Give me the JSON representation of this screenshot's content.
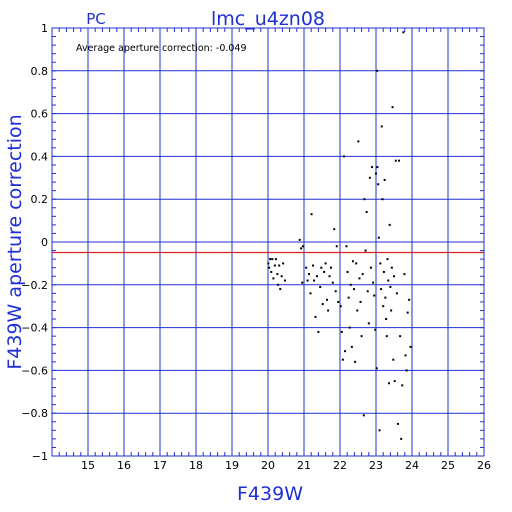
{
  "chart_data": {
    "type": "scatter",
    "panel_label": "PC",
    "title": "lmc_u4zn08",
    "xlabel": "F439W",
    "ylabel": "F439W aperture correction",
    "annotation": "Average aperture correction: -0.049",
    "average_aperture_correction": -0.049,
    "xlim": [
      14,
      26
    ],
    "ylim": [
      -1,
      1
    ],
    "x_ticks": [
      15,
      16,
      17,
      18,
      19,
      20,
      21,
      22,
      23,
      24,
      25,
      26
    ],
    "y_ticks": [
      -1,
      -0.8,
      -0.6,
      -0.4,
      -0.2,
      0,
      0.2,
      0.4,
      0.6,
      0.8,
      1
    ],
    "y_tick_labels": [
      "−1",
      "−0.8",
      "−0.6",
      "−0.4",
      "−0.2",
      "0",
      "0.2",
      "0.4",
      "0.6",
      "0.8",
      "1"
    ],
    "grid": true,
    "reference_line_color": "#e02020",
    "axis_color": "#1f2fd6",
    "point_color": "#000000",
    "series": [
      {
        "points": [
          [
            20.01,
            -0.1
          ],
          [
            20.03,
            -0.12
          ],
          [
            20.06,
            -0.08
          ],
          [
            20.09,
            -0.14
          ],
          [
            20.12,
            -0.08
          ],
          [
            20.15,
            -0.17
          ],
          [
            20.19,
            -0.11
          ],
          [
            20.22,
            -0.08
          ],
          [
            20.26,
            -0.15
          ],
          [
            20.28,
            -0.2
          ],
          [
            20.31,
            -0.11
          ],
          [
            20.34,
            -0.22
          ],
          [
            20.38,
            -0.16
          ],
          [
            20.42,
            -0.1
          ],
          [
            20.47,
            -0.18
          ],
          [
            20.88,
            0.01
          ],
          [
            20.92,
            -0.03
          ],
          [
            20.95,
            -0.19
          ],
          [
            20.97,
            -0.02
          ],
          [
            21.06,
            -0.12
          ],
          [
            21.1,
            -0.18
          ],
          [
            21.14,
            -0.15
          ],
          [
            21.18,
            -0.24
          ],
          [
            21.21,
            0.13
          ],
          [
            21.25,
            -0.11
          ],
          [
            21.28,
            -0.18
          ],
          [
            21.32,
            -0.35
          ],
          [
            21.36,
            -0.16
          ],
          [
            21.4,
            -0.42
          ],
          [
            21.45,
            -0.21
          ],
          [
            21.48,
            -0.12
          ],
          [
            21.52,
            -0.29
          ],
          [
            21.56,
            -0.14
          ],
          [
            21.6,
            -0.1
          ],
          [
            21.64,
            -0.27
          ],
          [
            21.67,
            -0.32
          ],
          [
            21.71,
            -0.16
          ],
          [
            21.75,
            -0.12
          ],
          [
            21.8,
            -0.19
          ],
          [
            21.84,
            0.06
          ],
          [
            21.88,
            -0.23
          ],
          [
            21.91,
            -0.02
          ],
          [
            21.95,
            -0.28
          ],
          [
            22.02,
            -0.3
          ],
          [
            22.05,
            -0.42
          ],
          [
            22.08,
            -0.55
          ],
          [
            22.11,
            0.4
          ],
          [
            22.14,
            -0.51
          ],
          [
            22.18,
            -0.02
          ],
          [
            22.21,
            -0.14
          ],
          [
            22.24,
            -0.26
          ],
          [
            22.27,
            -0.4
          ],
          [
            22.3,
            -0.2
          ],
          [
            22.33,
            -0.49
          ],
          [
            22.36,
            -0.09
          ],
          [
            22.39,
            -0.22
          ],
          [
            22.42,
            -0.56
          ],
          [
            22.45,
            -0.1
          ],
          [
            22.48,
            -0.32
          ],
          [
            22.51,
            0.47
          ],
          [
            22.54,
            -0.17
          ],
          [
            22.57,
            -0.28
          ],
          [
            22.6,
            -0.44
          ],
          [
            22.63,
            -0.15
          ],
          [
            22.66,
            -0.81
          ],
          [
            22.68,
            0.2
          ],
          [
            22.71,
            -0.04
          ],
          [
            22.74,
            0.14
          ],
          [
            22.77,
            -0.23
          ],
          [
            22.8,
            -0.38
          ],
          [
            22.83,
            0.3
          ],
          [
            22.86,
            -0.12
          ],
          [
            22.89,
            0.35
          ],
          [
            22.92,
            -0.19
          ],
          [
            22.95,
            -0.25
          ],
          [
            22.98,
            -0.41
          ],
          [
            23.0,
            0.32
          ],
          [
            23.02,
            -0.59
          ],
          [
            23.04,
            0.35
          ],
          [
            23.06,
            0.27
          ],
          [
            23.08,
            0.02
          ],
          [
            23.1,
            -0.88
          ],
          [
            23.12,
            -0.1
          ],
          [
            23.14,
            -0.22
          ],
          [
            23.16,
            0.54
          ],
          [
            23.18,
            0.2
          ],
          [
            23.2,
            -0.3
          ],
          [
            23.22,
            -0.14
          ],
          [
            23.24,
            0.29
          ],
          [
            23.26,
            -0.26
          ],
          [
            23.28,
            -0.36
          ],
          [
            23.3,
            -0.44
          ],
          [
            23.32,
            -0.08
          ],
          [
            23.34,
            -0.18
          ],
          [
            23.36,
            -0.66
          ],
          [
            23.38,
            0.08
          ],
          [
            23.4,
            -0.21
          ],
          [
            23.42,
            -0.32
          ],
          [
            23.44,
            -0.12
          ],
          [
            23.46,
            0.63
          ],
          [
            23.48,
            -0.55
          ],
          [
            23.5,
            -0.16
          ],
          [
            23.52,
            -0.65
          ],
          [
            23.55,
            0.38
          ],
          [
            23.58,
            -0.24
          ],
          [
            23.61,
            -0.85
          ],
          [
            23.64,
            0.38
          ],
          [
            23.67,
            -0.44
          ],
          [
            23.7,
            -0.92
          ],
          [
            23.73,
            -0.67
          ],
          [
            23.76,
            0.98
          ],
          [
            23.79,
            -0.15
          ],
          [
            23.82,
            -0.53
          ],
          [
            23.85,
            -0.6
          ],
          [
            23.88,
            -0.33
          ],
          [
            23.92,
            -0.27
          ],
          [
            23.96,
            -0.49
          ],
          [
            23.03,
            0.8
          ]
        ]
      }
    ]
  }
}
